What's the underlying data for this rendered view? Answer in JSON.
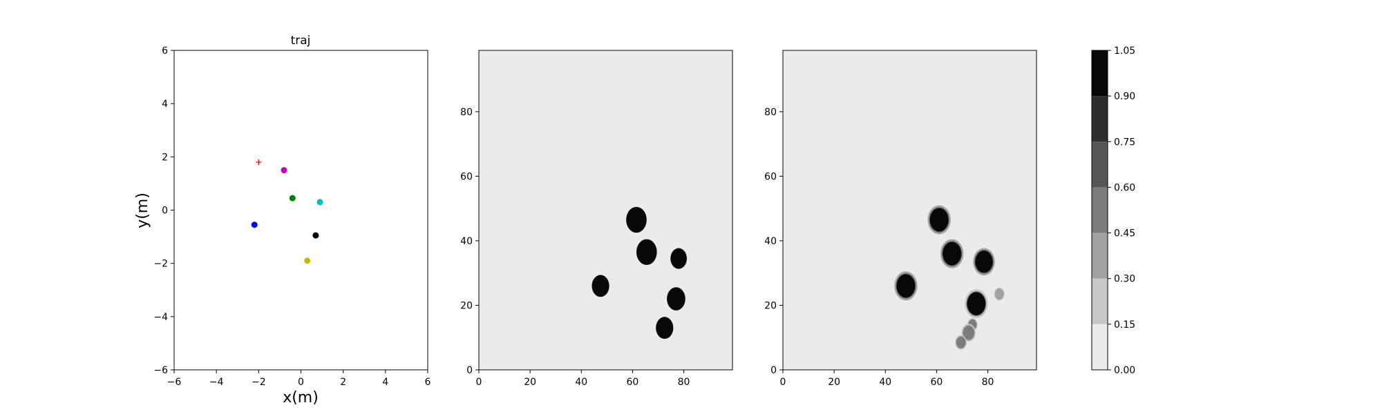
{
  "chart_data": [
    {
      "type": "scatter",
      "title": "traj",
      "xlabel": "x(m)",
      "ylabel": "y(m)",
      "xlim": [
        -6,
        6
      ],
      "ylim": [
        -6,
        6
      ],
      "xticks": [
        "−6",
        "−4",
        "−2",
        "0",
        "2",
        "4",
        "6"
      ],
      "yticks": [
        "−6",
        "−4",
        "−2",
        "0",
        "2",
        "4",
        "6"
      ],
      "grid": false,
      "points": [
        {
          "x": -2.0,
          "y": 1.8,
          "color": "#ff0000",
          "marker": "plus"
        },
        {
          "x": -0.8,
          "y": 1.5,
          "color": "#bf00bf",
          "marker": "circle"
        },
        {
          "x": -0.4,
          "y": 0.45,
          "color": "#008000",
          "marker": "circle"
        },
        {
          "x": 0.9,
          "y": 0.3,
          "color": "#00bfbf",
          "marker": "circle"
        },
        {
          "x": -2.2,
          "y": -0.55,
          "color": "#0000ff",
          "marker": "circle"
        },
        {
          "x": 0.7,
          "y": -0.95,
          "color": "#000000",
          "marker": "circle"
        },
        {
          "x": 0.3,
          "y": -1.9,
          "color": "#bfbf00",
          "marker": "circle"
        }
      ]
    },
    {
      "type": "heatmap",
      "xlim": [
        0,
        99
      ],
      "ylim": [
        0,
        99
      ],
      "xticks": [
        "0",
        "20",
        "40",
        "60",
        "80"
      ],
      "yticks": [
        "0",
        "20",
        "40",
        "60",
        "80"
      ],
      "background_color": "#ebebeb",
      "blobs": [
        {
          "x": 61.5,
          "y": 46.5,
          "r": 4.0,
          "level": 1.0
        },
        {
          "x": 65.5,
          "y": 36.5,
          "r": 4.0,
          "level": 1.0
        },
        {
          "x": 78.0,
          "y": 34.5,
          "r": 3.2,
          "level": 1.0
        },
        {
          "x": 47.5,
          "y": 26.0,
          "r": 3.4,
          "level": 1.0
        },
        {
          "x": 77.0,
          "y": 22.0,
          "r": 3.6,
          "level": 1.0
        },
        {
          "x": 72.5,
          "y": 13.0,
          "r": 3.4,
          "level": 1.0
        }
      ]
    },
    {
      "type": "heatmap",
      "xlim": [
        0,
        99
      ],
      "ylim": [
        0,
        99
      ],
      "xticks": [
        "0",
        "20",
        "40",
        "60",
        "80"
      ],
      "yticks": [
        "0",
        "20",
        "40",
        "60",
        "80"
      ],
      "background_color": "#ebebeb",
      "blobs": [
        {
          "x": 61.0,
          "y": 46.5,
          "r": 3.6,
          "level": 1.0
        },
        {
          "x": 66.0,
          "y": 36.0,
          "r": 3.6,
          "level": 1.0
        },
        {
          "x": 78.5,
          "y": 33.5,
          "r": 3.4,
          "level": 1.0
        },
        {
          "x": 48.0,
          "y": 26.0,
          "r": 3.6,
          "level": 1.0
        },
        {
          "x": 75.5,
          "y": 20.5,
          "r": 3.6,
          "level": 0.9
        },
        {
          "x": 84.5,
          "y": 23.5,
          "r": 1.6,
          "level": 0.3
        },
        {
          "x": 74.0,
          "y": 14.0,
          "r": 1.6,
          "level": 0.45
        },
        {
          "x": 72.5,
          "y": 11.5,
          "r": 2.2,
          "level": 0.45
        },
        {
          "x": 69.5,
          "y": 8.5,
          "r": 1.8,
          "level": 0.45
        }
      ]
    }
  ],
  "colorbar": {
    "ticks": [
      "0.00",
      "0.15",
      "0.30",
      "0.45",
      "0.60",
      "0.75",
      "0.90",
      "1.05"
    ],
    "levels": [
      0.0,
      0.15,
      0.3,
      0.45,
      0.6,
      0.75,
      0.9,
      1.05
    ],
    "colors": [
      "#ebebeb",
      "#c8c8c8",
      "#a2a2a2",
      "#7c7c7c",
      "#565656",
      "#2e2e2e",
      "#080808"
    ]
  }
}
